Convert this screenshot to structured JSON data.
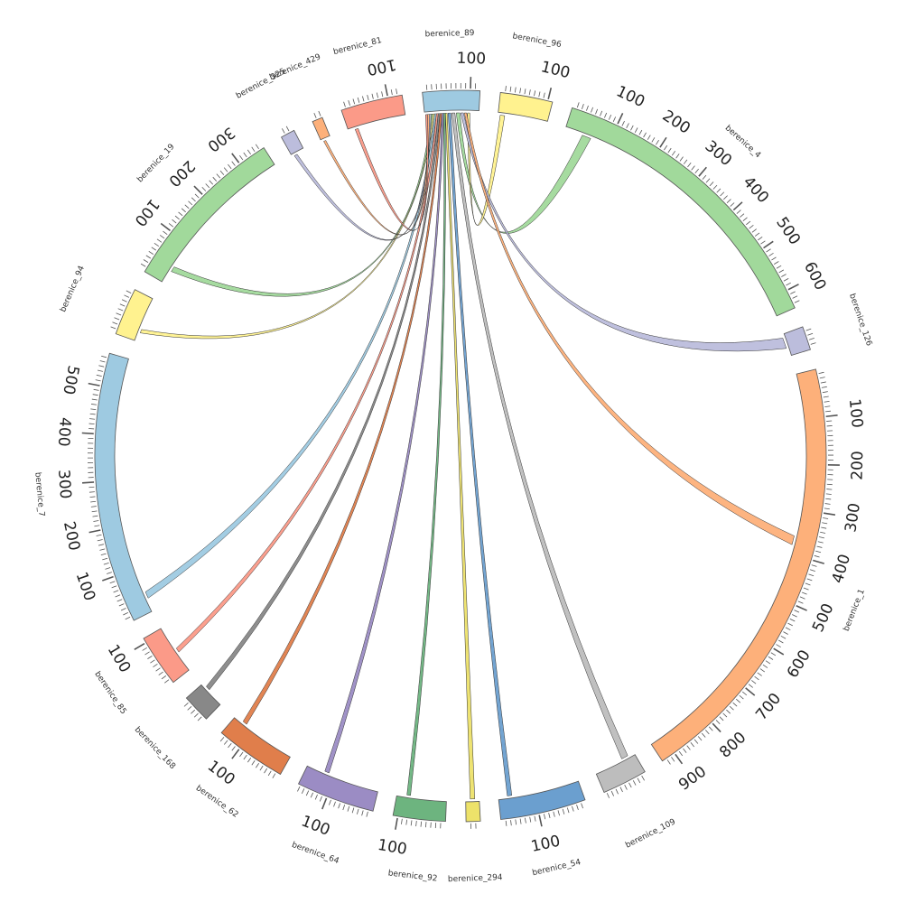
{
  "segments": [
    {
      "name": "berenice_89",
      "length": 120,
      "color": "#9ecae1"
    },
    {
      "name": "berenice_96",
      "length": 110,
      "color": "#fff28f"
    },
    {
      "name": "berenice_4",
      "length": 640,
      "color": "#a1d99b"
    },
    {
      "name": "berenice_126",
      "length": 50,
      "color": "#bcbddc"
    },
    {
      "name": "berenice_1",
      "length": 930,
      "color": "#fdb07a"
    },
    {
      "name": "berenice_109",
      "length": 95,
      "color": "#bdbdbd"
    },
    {
      "name": "berenice_54",
      "length": 180,
      "color": "#6b9fcf"
    },
    {
      "name": "berenice_294",
      "length": 30,
      "color": "#ede26a"
    },
    {
      "name": "berenice_92",
      "length": 110,
      "color": "#6db47f"
    },
    {
      "name": "berenice_64",
      "length": 165,
      "color": "#9b8cc4"
    },
    {
      "name": "berenice_62",
      "length": 150,
      "color": "#e07e4b"
    },
    {
      "name": "berenice_168",
      "length": 60,
      "color": "#888888"
    },
    {
      "name": "berenice_85",
      "length": 110,
      "color": "#fb9a88"
    },
    {
      "name": "berenice_7",
      "length": 570,
      "color": "#9ecae1"
    },
    {
      "name": "berenice_94",
      "length": 100,
      "color": "#fff28f"
    },
    {
      "name": "berenice_19",
      "length": 360,
      "color": "#a1d99b"
    },
    {
      "name": "berenice_325",
      "length": 30,
      "color": "#bcbddc"
    },
    {
      "name": "berenice_429",
      "length": 22,
      "color": "#fdb07a"
    },
    {
      "name": "berenice_81",
      "length": 130,
      "color": "#fb9a88"
    }
  ],
  "links": [
    {
      "a_seg": 0,
      "a_start": 70,
      "a_end": 78,
      "b_seg": 2,
      "b_start": 40,
      "b_end": 60,
      "color": "#a1d99b"
    },
    {
      "a_seg": 1,
      "a_start": 5,
      "a_end": 15,
      "b_seg": 0,
      "b_start": 95,
      "b_end": 100,
      "color": "#fff28f"
    },
    {
      "a_seg": 0,
      "a_start": 80,
      "a_end": 86,
      "b_seg": 3,
      "b_start": 8,
      "b_end": 32,
      "color": "#bcbddc"
    },
    {
      "a_seg": 0,
      "a_start": 88,
      "a_end": 93,
      "b_seg": 4,
      "b_start": 360,
      "b_end": 380,
      "color": "#fdb07a"
    },
    {
      "a_seg": 0,
      "a_start": 60,
      "a_end": 67,
      "b_seg": 5,
      "b_start": 15,
      "b_end": 30,
      "color": "#bdbdbd"
    },
    {
      "a_seg": 0,
      "a_start": 52,
      "a_end": 58,
      "b_seg": 6,
      "b_start": 150,
      "b_end": 160,
      "color": "#6b9fcf"
    },
    {
      "a_seg": 0,
      "a_start": 46,
      "a_end": 50,
      "b_seg": 7,
      "b_start": 10,
      "b_end": 20,
      "color": "#ede26a"
    },
    {
      "a_seg": 0,
      "a_start": 42,
      "a_end": 46,
      "b_seg": 8,
      "b_start": 80,
      "b_end": 88,
      "color": "#6db47f"
    },
    {
      "a_seg": 0,
      "a_start": 38,
      "a_end": 42,
      "b_seg": 9,
      "b_start": 115,
      "b_end": 125,
      "color": "#9b8cc4"
    },
    {
      "a_seg": 0,
      "a_start": 34,
      "a_end": 38,
      "b_seg": 10,
      "b_start": 120,
      "b_end": 130,
      "color": "#e07e4b"
    },
    {
      "a_seg": 0,
      "a_start": 30,
      "a_end": 34,
      "b_seg": 11,
      "b_start": 40,
      "b_end": 50,
      "color": "#888888"
    },
    {
      "a_seg": 0,
      "a_start": 26,
      "a_end": 30,
      "b_seg": 12,
      "b_start": 45,
      "b_end": 55,
      "color": "#fb9a88"
    },
    {
      "a_seg": 0,
      "a_start": 22,
      "a_end": 26,
      "b_seg": 13,
      "b_start": 30,
      "b_end": 45,
      "color": "#9ecae1"
    },
    {
      "a_seg": 0,
      "a_start": 18,
      "a_end": 22,
      "b_seg": 14,
      "b_start": 20,
      "b_end": 28,
      "color": "#fff28f"
    },
    {
      "a_seg": 0,
      "a_start": 14,
      "a_end": 18,
      "b_seg": 15,
      "b_start": 30,
      "b_end": 42,
      "color": "#a1d99b"
    },
    {
      "a_seg": 0,
      "a_start": 10,
      "a_end": 14,
      "b_seg": 16,
      "b_start": 5,
      "b_end": 12,
      "color": "#bcbddc"
    },
    {
      "a_seg": 0,
      "a_start": 6,
      "a_end": 10,
      "b_seg": 17,
      "b_start": 5,
      "b_end": 10,
      "color": "#fdb07a"
    },
    {
      "a_seg": 0,
      "a_start": 2,
      "a_end": 6,
      "b_seg": 18,
      "b_start": 15,
      "b_end": 22,
      "color": "#fb9a88"
    }
  ]
}
